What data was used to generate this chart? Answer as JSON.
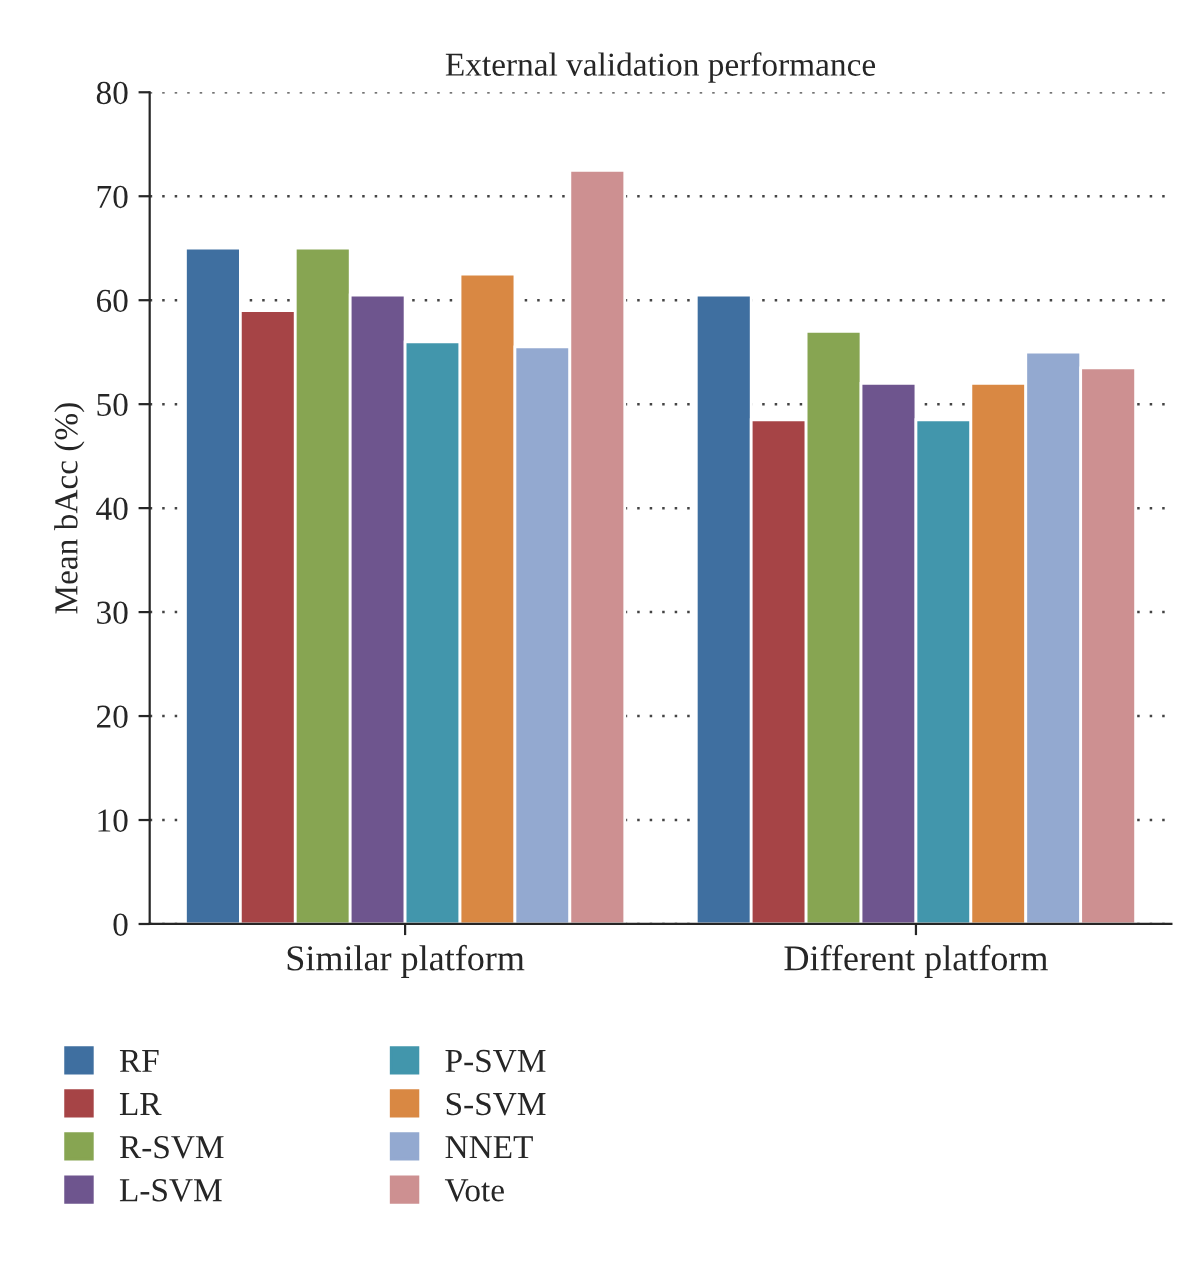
{
  "chart_data": {
    "type": "bar",
    "title": "External validation performance",
    "ylabel": "Mean bAcc (%)",
    "categories": [
      "Similar platform",
      "Different platform"
    ],
    "series": [
      {
        "name": "RF",
        "color": "#3f6fa0",
        "values": [
          65,
          60.5
        ]
      },
      {
        "name": "LR",
        "color": "#a64446",
        "values": [
          59,
          48.5
        ]
      },
      {
        "name": "R-SVM",
        "color": "#87a552",
        "values": [
          65,
          57
        ]
      },
      {
        "name": "L-SVM",
        "color": "#6e558e",
        "values": [
          60.5,
          52
        ]
      },
      {
        "name": "P-SVM",
        "color": "#4296ac",
        "values": [
          56,
          48.5
        ]
      },
      {
        "name": "S-SVM",
        "color": "#d98843",
        "values": [
          62.5,
          52
        ]
      },
      {
        "name": "NNET",
        "color": "#93a9d0",
        "values": [
          55.5,
          55
        ]
      },
      {
        "name": "Vote",
        "color": "#cd9091",
        "values": [
          72.5,
          53.5
        ]
      }
    ],
    "ylim": [
      0,
      80
    ],
    "yticks": [
      0,
      10,
      20,
      30,
      40,
      50,
      60,
      70,
      80
    ],
    "grid": "y",
    "legend": "bottom"
  }
}
